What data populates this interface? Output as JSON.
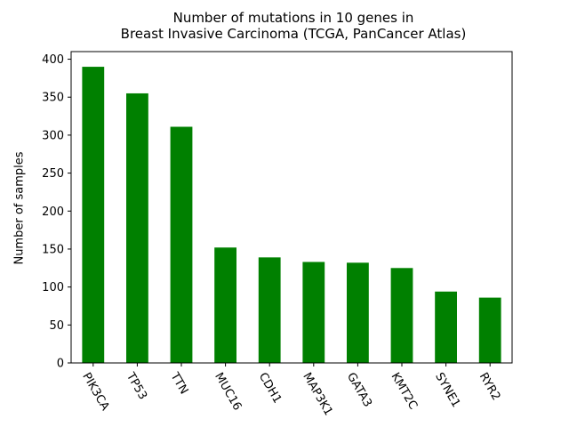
{
  "chart_data": {
    "type": "bar",
    "title_line1": "Number of mutations in 10 genes in",
    "title_line2": "Breast Invasive Carcinoma (TCGA, PanCancer Atlas)",
    "xlabel": "",
    "ylabel": "Number of samples",
    "categories": [
      "PIK3CA",
      "TP53",
      "TTN",
      "MUC16",
      "CDH1",
      "MAP3K1",
      "GATA3",
      "KMT2C",
      "SYNE1",
      "RYR2"
    ],
    "values": [
      390,
      355,
      311,
      152,
      139,
      133,
      132,
      125,
      94,
      86
    ],
    "ylim": [
      0,
      410
    ],
    "yticks": [
      0,
      50,
      100,
      150,
      200,
      250,
      300,
      350,
      400
    ],
    "bar_color": "#008000",
    "grid": false,
    "legend": "none"
  }
}
